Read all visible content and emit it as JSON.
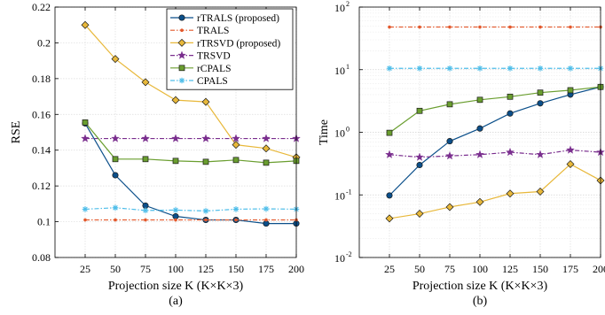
{
  "chart_data": [
    {
      "type": "line",
      "panel_caption": "(a)",
      "xlabel": "Projection size K (K×K×3)",
      "ylabel": "RSE",
      "x": [
        25,
        50,
        75,
        100,
        125,
        150,
        175,
        200
      ],
      "xlim": [
        0,
        200
      ],
      "ylim": [
        0.08,
        0.22
      ],
      "yscale": "linear",
      "yticks": [
        "0.08",
        "0.1",
        "0.12",
        "0.14",
        "0.16",
        "0.18",
        "0.2",
        "0.22"
      ],
      "grid": true,
      "legend_position": "top-right",
      "series": [
        {
          "name": "rTRALS (proposed)",
          "color": "#0b4f8a",
          "marker": "circle",
          "line": "solid",
          "values": [
            0.155,
            0.126,
            0.109,
            0.103,
            0.101,
            0.101,
            0.099,
            0.099
          ]
        },
        {
          "name": "TRALS",
          "color": "#e3582b",
          "marker": "dot",
          "line": "dashdot",
          "values": [
            0.101,
            0.101,
            0.101,
            0.101,
            0.101,
            0.101,
            0.101,
            0.101
          ]
        },
        {
          "name": "rTRSVD (proposed)",
          "color": "#e8b83a",
          "marker": "diamond",
          "line": "solid",
          "values": [
            0.21,
            0.191,
            0.178,
            0.168,
            0.167,
            0.143,
            0.141,
            0.136
          ]
        },
        {
          "name": "TRSVD",
          "color": "#7a2e8e",
          "marker": "star",
          "line": "dashdot",
          "values": [
            0.1465,
            0.1465,
            0.1465,
            0.1465,
            0.1465,
            0.1465,
            0.1465,
            0.1465
          ]
        },
        {
          "name": "rCPALS",
          "color": "#6a9e2f",
          "marker": "square",
          "line": "solid",
          "values": [
            0.1555,
            0.135,
            0.135,
            0.134,
            0.1335,
            0.1345,
            0.133,
            0.134
          ]
        },
        {
          "name": "CPALS",
          "color": "#4dbde9",
          "marker": "asterisk",
          "line": "dashdot",
          "values": [
            0.107,
            0.1078,
            0.1063,
            0.1065,
            0.106,
            0.107,
            0.1072,
            0.107
          ]
        }
      ]
    },
    {
      "type": "line",
      "panel_caption": "(b)",
      "xlabel": "Projection size K (K×K×3)",
      "ylabel": "Time",
      "x": [
        25,
        50,
        75,
        100,
        125,
        150,
        175,
        200
      ],
      "xlim": [
        0,
        200
      ],
      "ylim": [
        0.01,
        100
      ],
      "yscale": "log",
      "yticks": [
        {
          "base": "10",
          "exp": "-2"
        },
        {
          "base": "10",
          "exp": "-1"
        },
        {
          "base": "10",
          "exp": "0"
        },
        {
          "base": "10",
          "exp": "1"
        },
        {
          "base": "10",
          "exp": "2"
        }
      ],
      "grid": true,
      "series": [
        {
          "name": "rTRALS (proposed)",
          "color": "#0b4f8a",
          "marker": "circle",
          "line": "solid",
          "values": [
            0.098,
            0.3,
            0.72,
            1.15,
            2.0,
            2.9,
            4.0,
            5.3
          ]
        },
        {
          "name": "TRALS",
          "color": "#e3582b",
          "marker": "dot",
          "line": "dashdot",
          "values": [
            48,
            48,
            48,
            48,
            48,
            48,
            48,
            48
          ]
        },
        {
          "name": "rTRSVD (proposed)",
          "color": "#e8b83a",
          "marker": "diamond",
          "line": "solid",
          "values": [
            0.042,
            0.05,
            0.064,
            0.077,
            0.105,
            0.113,
            0.31,
            0.17
          ]
        },
        {
          "name": "TRSVD",
          "color": "#7a2e8e",
          "marker": "star",
          "line": "dashdot",
          "values": [
            0.44,
            0.4,
            0.42,
            0.44,
            0.48,
            0.44,
            0.52,
            0.48
          ]
        },
        {
          "name": "rCPALS",
          "color": "#6a9e2f",
          "marker": "square",
          "line": "solid",
          "values": [
            0.98,
            2.2,
            2.8,
            3.3,
            3.7,
            4.3,
            4.7,
            5.3
          ]
        },
        {
          "name": "CPALS",
          "color": "#4dbde9",
          "marker": "asterisk",
          "line": "dashdot",
          "values": [
            10.5,
            10.5,
            10.5,
            10.5,
            10.5,
            10.5,
            10.5,
            10.5
          ]
        }
      ]
    }
  ]
}
